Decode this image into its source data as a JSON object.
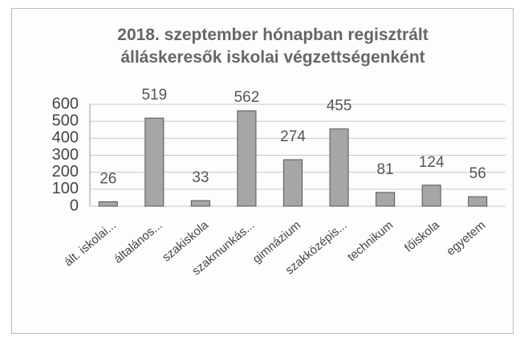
{
  "chart_data": {
    "type": "bar",
    "title": "2018. szeptember hónapban regisztrált álláskeresők iskolai végzettségenként",
    "categories": [
      "ált. iskolai...",
      "általános...",
      "szakiskola",
      "szakmunkás...",
      "gimnázium",
      "szakközépis...",
      "technikum",
      "főiskola",
      "egyetem"
    ],
    "values": [
      26,
      519,
      33,
      562,
      274,
      455,
      81,
      124,
      56
    ],
    "color": "#a6a6a6",
    "ylim": [
      0,
      600
    ],
    "yticks": [
      0,
      100,
      200,
      300,
      400,
      500,
      600
    ],
    "grid": true
  }
}
